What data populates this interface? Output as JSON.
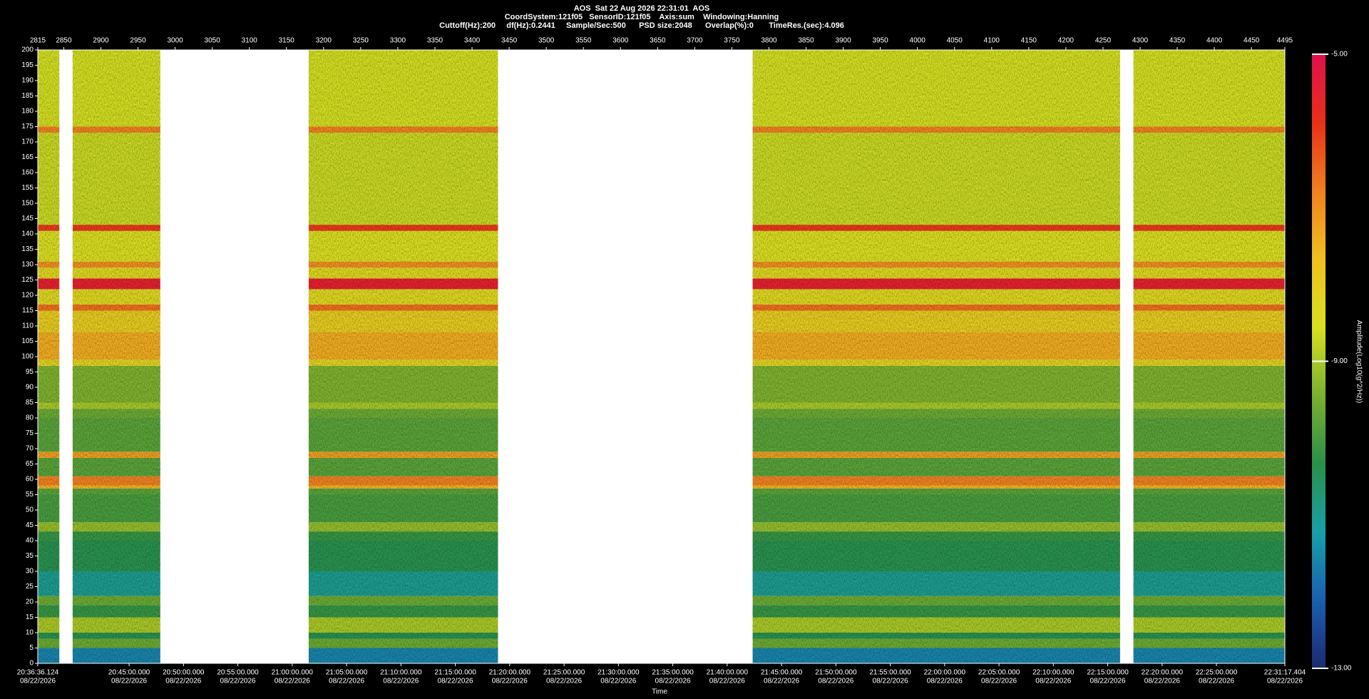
{
  "chart_data": {
    "type": "spectrogram",
    "title": "AOS  Sat 22 Aug 2026 22:31:01  AOS",
    "subtitle": "CoordSystem:121f05   SensorID:121f05    Axis:sum    Windowing:Hanning",
    "settings_line": "Cuttoff(Hz):200     df(Hz):0.2441     Sample/Sec:500      PSD size:2048      Overlap(%):0       TimeRes.(sec):4.096",
    "x_label": "Time",
    "colorbar_label": "Amplitude(Log10(g^2/Hz))",
    "xlim": [
      2815,
      4495
    ],
    "xticks": [
      2815,
      2850,
      2900,
      2950,
      3000,
      3050,
      3100,
      3150,
      3200,
      3250,
      3300,
      3350,
      3400,
      3450,
      3500,
      3550,
      3600,
      3650,
      3700,
      3750,
      3800,
      3850,
      3900,
      3950,
      4000,
      4050,
      4100,
      4150,
      4200,
      4250,
      4300,
      4350,
      4400,
      4450,
      4495
    ],
    "x2lim": [
      74196.124,
      81077.404
    ],
    "x2ticks": [
      {
        "value": 74196.124,
        "label": "20:36:36.124",
        "sublabel": "08/22/2026"
      },
      {
        "value": 74700,
        "label": "20:45:00.000",
        "sublabel": "08/22/2026"
      },
      {
        "value": 75000,
        "label": "20:50:00.000",
        "sublabel": "08/22/2026"
      },
      {
        "value": 75300,
        "label": "20:55:00.000",
        "sublabel": "08/22/2026"
      },
      {
        "value": 75600,
        "label": "21:00:00.000",
        "sublabel": "08/22/2026"
      },
      {
        "value": 75900,
        "label": "21:05:00.000",
        "sublabel": "08/22/2026"
      },
      {
        "value": 76200,
        "label": "21:10:00.000",
        "sublabel": "08/22/2026"
      },
      {
        "value": 76500,
        "label": "21:15:00.000",
        "sublabel": "08/22/2026"
      },
      {
        "value": 76800,
        "label": "21:20:00.000",
        "sublabel": "08/22/2026"
      },
      {
        "value": 77100,
        "label": "21:25:00.000",
        "sublabel": "08/22/2026"
      },
      {
        "value": 77400,
        "label": "21:30:00.000",
        "sublabel": "08/22/2026"
      },
      {
        "value": 77700,
        "label": "21:35:00.000",
        "sublabel": "08/22/2026"
      },
      {
        "value": 78000,
        "label": "21:40:00.000",
        "sublabel": "08/22/2026"
      },
      {
        "value": 78300,
        "label": "21:45:00.000",
        "sublabel": "08/22/2026"
      },
      {
        "value": 78600,
        "label": "21:50:00.000",
        "sublabel": "08/22/2026"
      },
      {
        "value": 78900,
        "label": "21:55:00.000",
        "sublabel": "08/22/2026"
      },
      {
        "value": 79200,
        "label": "22:00:00.000",
        "sublabel": "08/22/2026"
      },
      {
        "value": 79500,
        "label": "22:05:00.000",
        "sublabel": "08/22/2026"
      },
      {
        "value": 79800,
        "label": "22:10:00.000",
        "sublabel": "08/22/2026"
      },
      {
        "value": 80100,
        "label": "22:15:00.000",
        "sublabel": "08/22/2026"
      },
      {
        "value": 80400,
        "label": "22:20:00.000",
        "sublabel": "08/22/2026"
      },
      {
        "value": 80700,
        "label": "22:25:00.000",
        "sublabel": "08/22/2026"
      },
      {
        "value": 81077.404,
        "label": "22:31:17.404",
        "sublabel": "08/22/2026"
      }
    ],
    "ylim": [
      0,
      200
    ],
    "yticks": [
      0,
      5,
      10,
      15,
      20,
      25,
      30,
      35,
      40,
      45,
      50,
      55,
      60,
      65,
      70,
      75,
      80,
      85,
      90,
      95,
      100,
      105,
      110,
      115,
      120,
      125,
      130,
      135,
      140,
      145,
      150,
      155,
      160,
      165,
      170,
      175,
      180,
      185,
      190,
      195,
      200
    ],
    "clim": [
      -13,
      -5
    ],
    "cticks": [
      {
        "value": -5,
        "label": "-5.00"
      },
      {
        "value": -9,
        "label": "-9.00"
      },
      {
        "value": -13,
        "label": "-13.00"
      }
    ],
    "colormap": [
      "#1c2a70",
      "#1a5fb0",
      "#18a0a8",
      "#2a9048",
      "#7ab030",
      "#d8e020",
      "#f0c020",
      "#f08020",
      "#e83018",
      "#e0104c"
    ],
    "segments": [
      [
        2815,
        2844
      ],
      [
        2862,
        2980
      ],
      [
        3180,
        3435
      ],
      [
        3778,
        4273
      ],
      [
        4291,
        4495
      ]
    ],
    "profile": {
      "bins": [
        0,
        5,
        8,
        10,
        15,
        19,
        22,
        30,
        40,
        43,
        46,
        55,
        57,
        58,
        61,
        67,
        69,
        80,
        83,
        85,
        97,
        99,
        108,
        115,
        117,
        122,
        125.5,
        129,
        131,
        141,
        143,
        150,
        173,
        175,
        200
      ],
      "levels": [
        -11.6,
        -9.6,
        -10.4,
        -9.0,
        -10.2,
        -9.6,
        -11.0,
        -10.4,
        -10.2,
        -9.2,
        -10.0,
        -9.8,
        -7.5,
        -6.8,
        -9.8,
        -7.2,
        -9.8,
        -9.6,
        -9.0,
        -9.4,
        -8.2,
        -7.4,
        -8.0,
        -6.6,
        -8.3,
        -5.5,
        -8.3,
        -7.0,
        -8.5,
        -6.0,
        -8.7,
        -8.7,
        -6.8,
        -8.6
      ]
    }
  }
}
